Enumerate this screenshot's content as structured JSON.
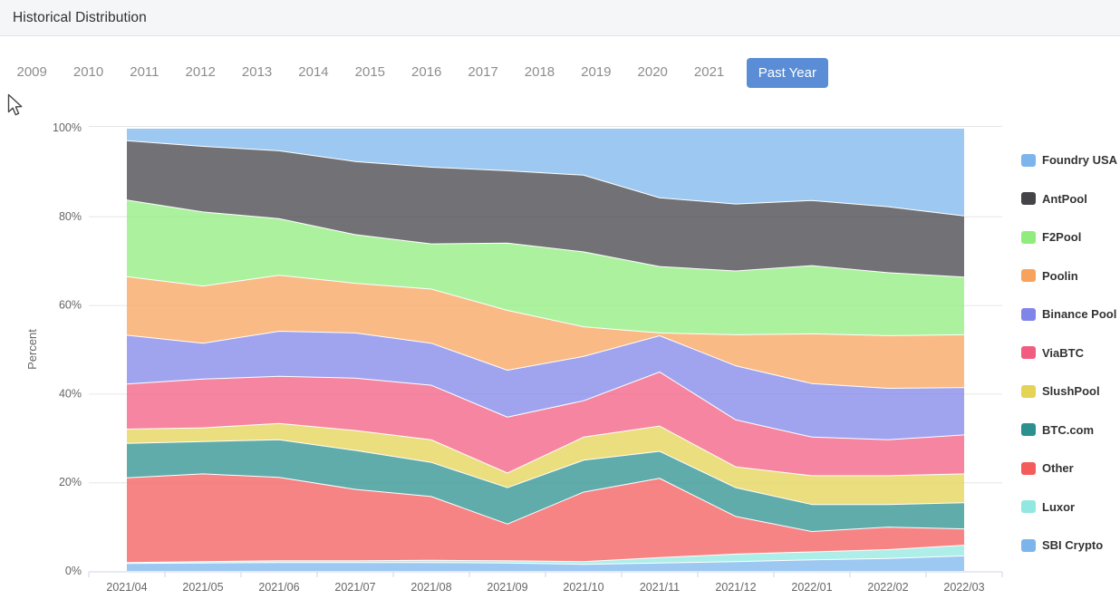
{
  "header": {
    "title": "Historical Distribution"
  },
  "tabs": {
    "years": [
      "2009",
      "2010",
      "2011",
      "2012",
      "2013",
      "2014",
      "2015",
      "2016",
      "2017",
      "2018",
      "2019",
      "2020",
      "2021"
    ],
    "active_label": "Past Year",
    "active_color": "#5a8dd5"
  },
  "chart_data": {
    "type": "area",
    "stacking": "percent",
    "ylabel": "Percent",
    "ylim": [
      0,
      100
    ],
    "y_tick_labels": [
      "0%",
      "20%",
      "40%",
      "60%",
      "80%",
      "100%"
    ],
    "grid": true,
    "legend_position": "right",
    "fill_opacity": 0.75,
    "grid_color": "#e6e6e6",
    "axis_line_color": "#ccd6eb",
    "axis_label_color": "#666666",
    "categories": [
      "2021/04",
      "2021/05",
      "2021/06",
      "2021/07",
      "2021/08",
      "2021/09",
      "2021/10",
      "2021/11",
      "2021/12",
      "2022/01",
      "2022/02",
      "2022/03"
    ],
    "series": [
      {
        "name": "Foundry USA",
        "color": "#7cb5ec",
        "values": [
          2.8,
          4.1,
          5.1,
          7.5,
          8.8,
          9.6,
          10.6,
          15.7,
          17.1,
          16.3,
          17.7,
          19.8
        ]
      },
      {
        "name": "AntPool",
        "color": "#434348",
        "values": [
          13.4,
          14.8,
          15.3,
          16.5,
          17.3,
          16.3,
          17.3,
          15.5,
          15.1,
          14.7,
          14.9,
          13.8
        ]
      },
      {
        "name": "F2Pool",
        "color": "#90ed7d",
        "values": [
          17.3,
          16.7,
          12.8,
          11.0,
          10.2,
          15.2,
          16.9,
          15.0,
          14.4,
          15.4,
          14.2,
          13.0
        ]
      },
      {
        "name": "Poolin",
        "color": "#f7a35c",
        "values": [
          13.2,
          12.9,
          12.6,
          11.2,
          12.2,
          13.5,
          6.7,
          0.6,
          7.0,
          11.2,
          11.9,
          11.9
        ]
      },
      {
        "name": "Binance Pool",
        "color": "#8085e9",
        "values": [
          11.0,
          8.1,
          10.2,
          10.2,
          9.5,
          10.6,
          10.0,
          8.2,
          12.2,
          12.1,
          11.6,
          10.7
        ]
      },
      {
        "name": "ViaBTC",
        "color": "#f15c80",
        "values": [
          10.2,
          11.0,
          10.6,
          11.8,
          12.3,
          12.6,
          8.2,
          12.2,
          10.6,
          8.7,
          8.1,
          8.8
        ]
      },
      {
        "name": "SlushPool",
        "color": "#e4d354",
        "values": [
          3.2,
          3.1,
          3.7,
          4.5,
          5.1,
          3.3,
          5.2,
          5.7,
          4.7,
          6.5,
          6.5,
          6.5
        ]
      },
      {
        "name": "BTC.com",
        "color": "#2b908f",
        "values": [
          7.8,
          7.3,
          8.5,
          8.8,
          7.7,
          8.2,
          7.2,
          6.1,
          6.5,
          6.1,
          5.1,
          5.9
        ]
      },
      {
        "name": "Other",
        "color": "#f45b5b",
        "values": [
          19.1,
          19.8,
          18.8,
          16.1,
          14.4,
          8.3,
          15.7,
          17.9,
          8.5,
          4.6,
          5.1,
          3.7
        ]
      },
      {
        "name": "Luxor",
        "color": "#91e8e1",
        "values": [
          0.2,
          0.3,
          0.4,
          0.4,
          0.5,
          0.5,
          0.6,
          1.2,
          1.7,
          1.8,
          2.0,
          2.4
        ]
      },
      {
        "name": "SBI Crypto",
        "color": "#7cb5ec",
        "values": [
          1.8,
          1.9,
          2.0,
          2.0,
          2.0,
          1.9,
          1.6,
          1.9,
          2.2,
          2.6,
          2.9,
          3.5
        ]
      }
    ]
  }
}
